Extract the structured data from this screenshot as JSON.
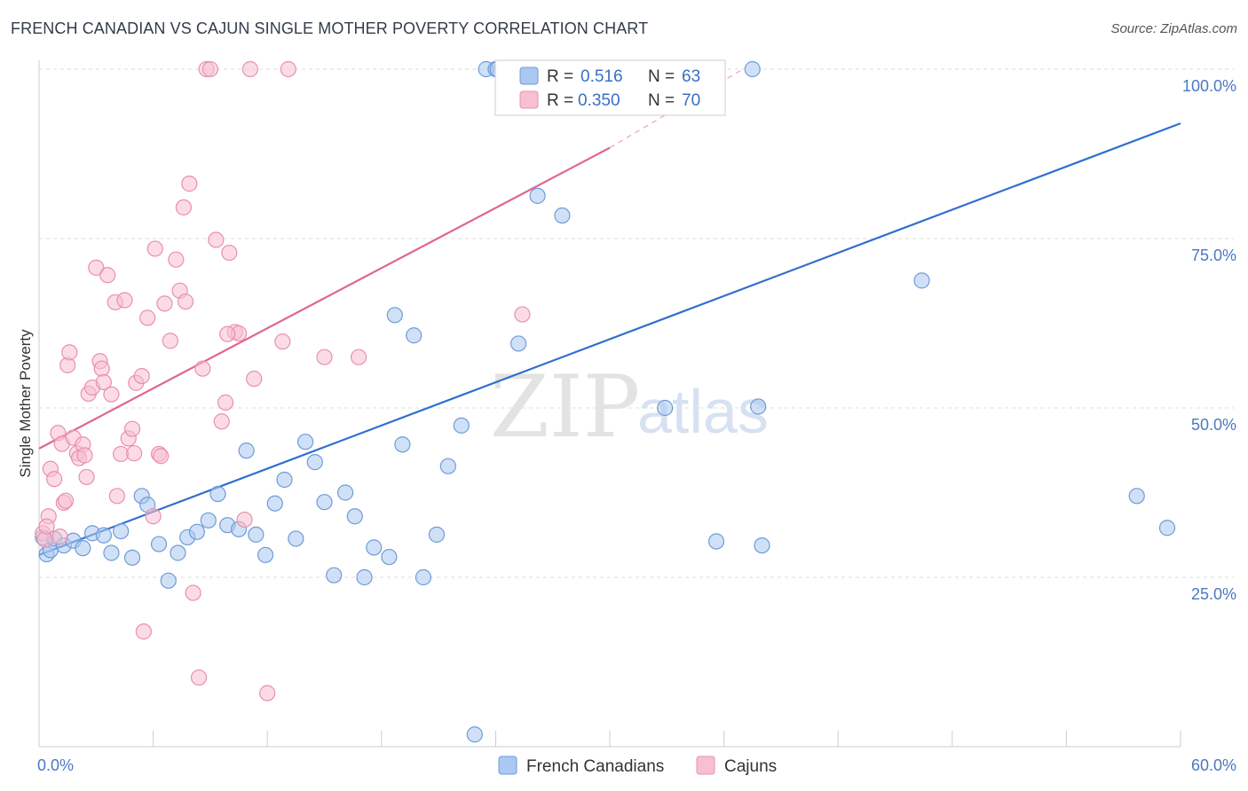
{
  "title": "FRENCH CANADIAN VS CAJUN SINGLE MOTHER POVERTY CORRELATION CHART",
  "source": "Source: ZipAtlas.com",
  "watermark": {
    "zip": "ZIP",
    "atlas": "atlas"
  },
  "colors": {
    "blue_fill": "#aac8f0",
    "blue_stroke": "#6f9bd8",
    "blue_line": "#2f6fcf",
    "pink_fill": "#f7bfd0",
    "pink_stroke": "#e890ad",
    "pink_line": "#e06690",
    "axis_text": "#4a78c2",
    "grid": "#dddddd"
  },
  "chart_data": {
    "type": "scatter",
    "xlabel": "",
    "ylabel": "Single Mother Poverty",
    "xlim": [
      0,
      60
    ],
    "ylim": [
      0,
      100
    ],
    "x_tick_labels": [
      {
        "value": 0,
        "label": "0.0%"
      },
      {
        "value": 60,
        "label": "60.0%"
      }
    ],
    "y_tick_labels": [
      {
        "value": 25,
        "label": "25.0%"
      },
      {
        "value": 50,
        "label": "50.0%"
      },
      {
        "value": 75,
        "label": "75.0%"
      },
      {
        "value": 100,
        "label": "100.0%"
      }
    ],
    "grid": "horizontal dashed",
    "legend_position": "top-center",
    "stats_legend": [
      {
        "r_label": "R =",
        "r_value": "0.516",
        "n_label": "N =",
        "n_value": "63",
        "color": "blue"
      },
      {
        "r_label": "R =",
        "r_value": "0.350",
        "n_label": "N =",
        "n_value": "70",
        "color": "pink"
      }
    ],
    "series": [
      {
        "name": "French Canadians",
        "color": "blue",
        "trend": {
          "x0": 0,
          "y0": 28.3,
          "x1": 60,
          "y1": 92.0
        },
        "points": [
          [
            0.2,
            30.9
          ],
          [
            0.4,
            28.4
          ],
          [
            0.6,
            29.0
          ],
          [
            0.8,
            30.7
          ],
          [
            1.3,
            29.7
          ],
          [
            1.8,
            30.4
          ],
          [
            2.3,
            29.3
          ],
          [
            2.8,
            31.5
          ],
          [
            3.4,
            31.2
          ],
          [
            3.8,
            28.6
          ],
          [
            4.3,
            31.8
          ],
          [
            4.9,
            27.9
          ],
          [
            5.4,
            37.0
          ],
          [
            5.7,
            35.7
          ],
          [
            6.3,
            29.9
          ],
          [
            6.8,
            24.5
          ],
          [
            7.3,
            28.6
          ],
          [
            7.8,
            30.9
          ],
          [
            8.3,
            31.7
          ],
          [
            8.9,
            33.4
          ],
          [
            9.4,
            37.3
          ],
          [
            9.9,
            32.7
          ],
          [
            10.5,
            32.1
          ],
          [
            10.9,
            43.7
          ],
          [
            11.4,
            31.3
          ],
          [
            11.9,
            28.3
          ],
          [
            12.4,
            35.9
          ],
          [
            12.9,
            39.4
          ],
          [
            13.5,
            30.7
          ],
          [
            14.0,
            45.0
          ],
          [
            14.5,
            42.0
          ],
          [
            15.0,
            36.1
          ],
          [
            15.5,
            25.3
          ],
          [
            16.1,
            37.5
          ],
          [
            16.6,
            34.0
          ],
          [
            17.1,
            25.0
          ],
          [
            17.6,
            29.4
          ],
          [
            18.4,
            28.0
          ],
          [
            18.7,
            63.7
          ],
          [
            19.1,
            44.6
          ],
          [
            19.7,
            60.7
          ],
          [
            20.2,
            25.0
          ],
          [
            20.9,
            31.3
          ],
          [
            21.5,
            41.4
          ],
          [
            22.2,
            47.4
          ],
          [
            22.9,
            1.8
          ],
          [
            23.5,
            100
          ],
          [
            24.0,
            100
          ],
          [
            24.5,
            100
          ],
          [
            25.2,
            59.5
          ],
          [
            26.2,
            81.3
          ],
          [
            27.7,
            100
          ],
          [
            28.1,
            100
          ],
          [
            28.6,
            100
          ],
          [
            29.2,
            100
          ],
          [
            29.6,
            100
          ],
          [
            30.3,
            100
          ],
          [
            31.1,
            100
          ],
          [
            31.7,
            100
          ],
          [
            32.4,
            100
          ],
          [
            35.6,
            30.3
          ],
          [
            37.8,
            50.2
          ],
          [
            46.4,
            68.8
          ]
        ],
        "extra_points": [
          [
            57.7,
            37.0
          ],
          [
            59.3,
            32.3
          ],
          [
            38.0,
            29.7
          ],
          [
            27.5,
            78.4
          ],
          [
            24.1,
            100
          ],
          [
            34.6,
            100
          ],
          [
            34.6,
            100
          ],
          [
            37.5,
            100
          ],
          [
            32.9,
            50.0
          ],
          [
            33.8,
            100
          ]
        ]
      },
      {
        "name": "Cajuns",
        "color": "pink",
        "trend": {
          "x0": 0,
          "y0": 44.0,
          "x1": 30,
          "y1": 88.4,
          "dashed_to_x": 37.0,
          "dashed_to_y": 100
        },
        "points": [
          [
            0.2,
            31.5
          ],
          [
            0.3,
            30.6
          ],
          [
            0.5,
            34.0
          ],
          [
            0.6,
            41.0
          ],
          [
            0.8,
            39.5
          ],
          [
            1.0,
            46.3
          ],
          [
            1.2,
            44.7
          ],
          [
            1.3,
            36.0
          ],
          [
            1.5,
            56.3
          ],
          [
            1.6,
            58.2
          ],
          [
            1.8,
            45.6
          ],
          [
            2.0,
            43.3
          ],
          [
            2.1,
            42.6
          ],
          [
            2.3,
            44.6
          ],
          [
            2.5,
            39.8
          ],
          [
            2.6,
            52.1
          ],
          [
            2.8,
            53.0
          ],
          [
            3.0,
            70.7
          ],
          [
            3.2,
            56.9
          ],
          [
            3.3,
            55.8
          ],
          [
            3.4,
            53.8
          ],
          [
            3.6,
            69.6
          ],
          [
            3.8,
            52.0
          ],
          [
            4.0,
            65.6
          ],
          [
            4.1,
            37.0
          ],
          [
            4.3,
            43.2
          ],
          [
            4.5,
            65.9
          ],
          [
            4.7,
            45.5
          ],
          [
            4.9,
            46.9
          ],
          [
            5.1,
            53.7
          ],
          [
            5.4,
            54.7
          ],
          [
            5.5,
            17.0
          ],
          [
            5.7,
            63.3
          ],
          [
            6.0,
            34.0
          ],
          [
            6.1,
            73.5
          ],
          [
            6.3,
            43.2
          ],
          [
            6.6,
            65.4
          ],
          [
            6.9,
            59.9
          ],
          [
            7.2,
            71.9
          ],
          [
            7.4,
            67.3
          ],
          [
            7.6,
            79.6
          ],
          [
            7.9,
            83.1
          ],
          [
            8.1,
            22.7
          ],
          [
            8.4,
            10.2
          ],
          [
            8.6,
            55.8
          ],
          [
            8.8,
            100
          ],
          [
            9.0,
            100
          ],
          [
            9.3,
            74.8
          ],
          [
            9.6,
            48.0
          ],
          [
            9.8,
            50.8
          ],
          [
            10.0,
            72.9
          ],
          [
            10.3,
            61.2
          ],
          [
            10.5,
            61.0
          ],
          [
            10.8,
            33.5
          ],
          [
            11.1,
            100
          ],
          [
            11.3,
            54.3
          ],
          [
            12.0,
            7.9
          ],
          [
            12.8,
            59.8
          ],
          [
            13.1,
            100
          ],
          [
            15.0,
            57.5
          ],
          [
            16.8,
            57.5
          ],
          [
            25.4,
            63.8
          ],
          [
            0.4,
            32.5
          ],
          [
            1.1,
            31.0
          ],
          [
            1.4,
            36.3
          ],
          [
            2.4,
            43.0
          ],
          [
            5.0,
            43.3
          ],
          [
            7.7,
            65.7
          ],
          [
            9.9,
            60.9
          ],
          [
            6.4,
            42.9
          ]
        ]
      }
    ]
  },
  "bottom_legend": [
    {
      "label": "French Canadians",
      "color": "blue"
    },
    {
      "label": "Cajuns",
      "color": "pink"
    }
  ]
}
